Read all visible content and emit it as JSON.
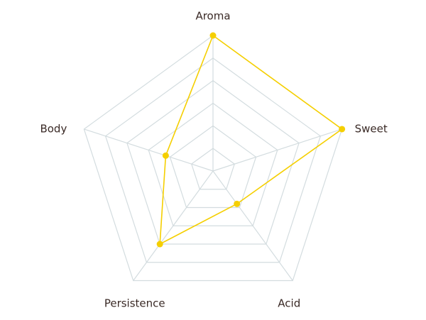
{
  "chart_data": {
    "type": "radar",
    "categories": [
      "Aroma",
      "Sweet",
      "Acid",
      "Persistence",
      "Body"
    ],
    "values": [
      6,
      6,
      1.8,
      4,
      2.2
    ],
    "color": "#f5cf00",
    "rlim": [
      0,
      6
    ],
    "rticks": [
      1,
      2,
      3,
      4,
      5,
      6
    ],
    "grid": true
  }
}
